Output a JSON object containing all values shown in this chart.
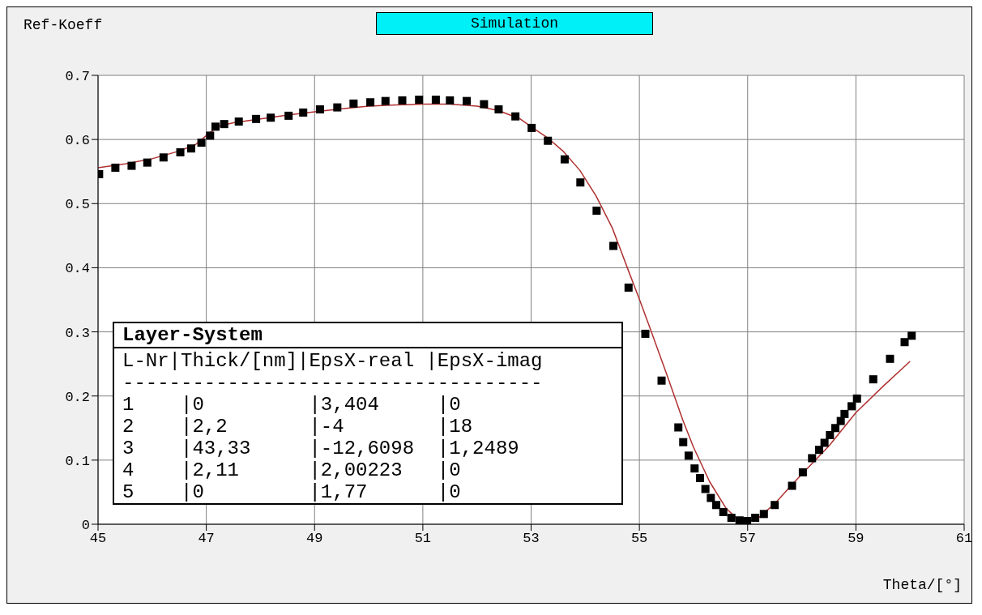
{
  "chart_data": {
    "type": "scatter",
    "title": "Simulation",
    "xlabel": "Theta/[°]",
    "ylabel": "Ref-Koeff",
    "xlim": [
      45,
      61
    ],
    "xticks": [
      45,
      47,
      49,
      51,
      53,
      55,
      57,
      59,
      61
    ],
    "ylim": [
      0,
      0.7
    ],
    "yticks": [
      0,
      0.1,
      0.2,
      0.3,
      0.4,
      0.5,
      0.6,
      0.7
    ],
    "grid": true,
    "series": [
      {
        "marker": "square",
        "color": "#000000",
        "x": [
          45.02,
          45.32,
          45.62,
          45.91,
          46.21,
          46.52,
          46.72,
          46.91,
          47.07,
          47.17,
          47.33,
          47.6,
          47.92,
          48.19,
          48.52,
          48.79,
          49.1,
          49.42,
          49.72,
          50.03,
          50.31,
          50.62,
          50.93,
          51.24,
          51.5,
          51.81,
          52.13,
          52.4,
          52.71,
          53.01,
          53.31,
          53.62,
          53.91,
          54.21,
          54.52,
          54.8,
          55.11,
          55.41,
          55.72,
          55.81,
          55.91,
          56.02,
          56.12,
          56.22,
          56.32,
          56.42,
          56.55,
          56.7,
          56.85,
          56.99,
          57.14,
          57.3,
          57.5,
          57.82,
          58.02,
          58.19,
          58.32,
          58.42,
          58.52,
          58.62,
          58.72,
          58.79,
          58.92,
          59.02,
          59.32,
          59.63,
          59.9,
          60.03
        ],
        "values": [
          0.546,
          0.556,
          0.559,
          0.564,
          0.572,
          0.58,
          0.586,
          0.595,
          0.606,
          0.62,
          0.624,
          0.628,
          0.632,
          0.634,
          0.637,
          0.642,
          0.647,
          0.65,
          0.656,
          0.658,
          0.66,
          0.661,
          0.662,
          0.662,
          0.661,
          0.66,
          0.655,
          0.647,
          0.636,
          0.618,
          0.598,
          0.569,
          0.533,
          0.489,
          0.434,
          0.369,
          0.297,
          0.224,
          0.151,
          0.128,
          0.107,
          0.087,
          0.072,
          0.055,
          0.041,
          0.03,
          0.019,
          0.01,
          0.006,
          0.005,
          0.01,
          0.016,
          0.03,
          0.06,
          0.081,
          0.103,
          0.116,
          0.127,
          0.139,
          0.15,
          0.161,
          0.172,
          0.184,
          0.196,
          0.226,
          0.258,
          0.284,
          0.294
        ]
      },
      {
        "type": "line",
        "marker": "none",
        "line_style": "solid",
        "color": "#b03030",
        "x": [
          45,
          45.5,
          46,
          46.5,
          46.8,
          47,
          47.2,
          47.5,
          48,
          48.5,
          49,
          49.5,
          50,
          50.5,
          51,
          51.5,
          52,
          52.4,
          52.8,
          53,
          53.3,
          53.6,
          53.9,
          54.2,
          54.5,
          54.8,
          55,
          55.2,
          55.5,
          55.8,
          56,
          56.3,
          56.6,
          56.8,
          57,
          57.2,
          57.5,
          57.8,
          58,
          58.5,
          59,
          59.5,
          60
        ],
        "values": [
          0.556,
          0.562,
          0.57,
          0.582,
          0.592,
          0.606,
          0.62,
          0.626,
          0.632,
          0.638,
          0.643,
          0.648,
          0.652,
          0.654,
          0.655,
          0.655,
          0.652,
          0.645,
          0.632,
          0.62,
          0.603,
          0.581,
          0.552,
          0.512,
          0.462,
          0.395,
          0.351,
          0.305,
          0.235,
          0.163,
          0.12,
          0.066,
          0.025,
          0.009,
          0.004,
          0.01,
          0.032,
          0.06,
          0.078,
          0.122,
          0.174,
          0.215,
          0.254
        ]
      }
    ],
    "annotations": [
      "Layer-System",
      "L-Nr|Thick/[nm]|EpsX-real |EpsX-imag",
      "------------------------------------",
      "1    |0         |3,404     |0",
      "2    |2,2       |-4        |18",
      "3    |43,33     |-12,6098  |1,2489",
      "4    |2,11      |2,00223   |0",
      "5    |0         |1,77      |0"
    ]
  }
}
